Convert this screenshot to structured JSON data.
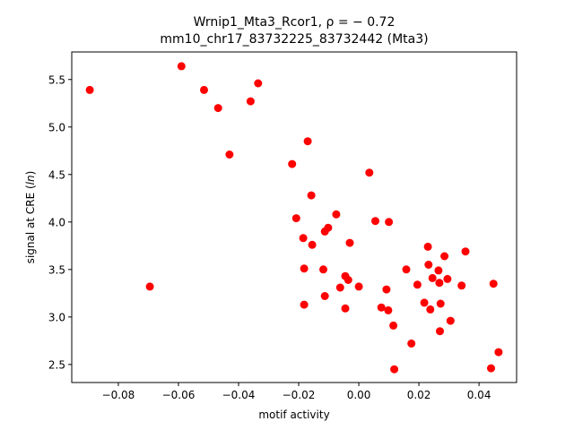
{
  "chart_data": {
    "type": "scatter",
    "title_line1": "Wrnip1_Mta3_Rcor1, ρ = − 0.72",
    "title_line2": "mm10_chr17_83732225_83732442 (Mta3)",
    "xlabel": "motif activity",
    "ylabel": "signal at CRE (ln)",
    "xlim": [
      -0.0955,
      0.0525
    ],
    "ylim": [
      2.31,
      5.79
    ],
    "xticks": [
      -0.08,
      -0.06,
      -0.04,
      -0.02,
      0.0,
      0.02,
      0.04
    ],
    "xtick_labels": [
      "−0.08",
      "−0.06",
      "−0.04",
      "−0.02",
      "0.00",
      "0.02",
      "0.04"
    ],
    "yticks": [
      2.5,
      3.0,
      3.5,
      4.0,
      4.5,
      5.0,
      5.5
    ],
    "ytick_labels": [
      "2.5",
      "3.0",
      "3.5",
      "4.0",
      "4.5",
      "5.0",
      "5.5"
    ],
    "marker_color": "#ff0000",
    "grid": false,
    "points": [
      {
        "x": -0.0895,
        "y": 5.39
      },
      {
        "x": -0.0695,
        "y": 3.32
      },
      {
        "x": -0.059,
        "y": 5.64
      },
      {
        "x": -0.0515,
        "y": 5.39
      },
      {
        "x": -0.0468,
        "y": 5.2
      },
      {
        "x": -0.043,
        "y": 4.71
      },
      {
        "x": -0.036,
        "y": 5.27
      },
      {
        "x": -0.0335,
        "y": 5.46
      },
      {
        "x": -0.0222,
        "y": 4.61
      },
      {
        "x": -0.0208,
        "y": 4.04
      },
      {
        "x": -0.0185,
        "y": 3.83
      },
      {
        "x": -0.0182,
        "y": 3.51
      },
      {
        "x": -0.0182,
        "y": 3.13
      },
      {
        "x": -0.017,
        "y": 4.85
      },
      {
        "x": -0.0158,
        "y": 4.28
      },
      {
        "x": -0.0155,
        "y": 3.76
      },
      {
        "x": -0.0118,
        "y": 3.5
      },
      {
        "x": -0.0113,
        "y": 3.9
      },
      {
        "x": -0.0113,
        "y": 3.22
      },
      {
        "x": -0.0102,
        "y": 3.94
      },
      {
        "x": -0.0075,
        "y": 4.08
      },
      {
        "x": -0.0062,
        "y": 3.31
      },
      {
        "x": -0.0045,
        "y": 3.43
      },
      {
        "x": -0.0045,
        "y": 3.09
      },
      {
        "x": -0.0035,
        "y": 3.39
      },
      {
        "x": -0.003,
        "y": 3.78
      },
      {
        "x": 0.0,
        "y": 3.32
      },
      {
        "x": 0.0035,
        "y": 4.52
      },
      {
        "x": 0.0055,
        "y": 4.01
      },
      {
        "x": 0.0075,
        "y": 3.1
      },
      {
        "x": 0.0092,
        "y": 3.29
      },
      {
        "x": 0.0098,
        "y": 3.07
      },
      {
        "x": 0.01,
        "y": 4.0
      },
      {
        "x": 0.0115,
        "y": 2.91
      },
      {
        "x": 0.0118,
        "y": 2.45
      },
      {
        "x": 0.0158,
        "y": 3.5
      },
      {
        "x": 0.0175,
        "y": 2.72
      },
      {
        "x": 0.0195,
        "y": 3.34
      },
      {
        "x": 0.0218,
        "y": 3.15
      },
      {
        "x": 0.023,
        "y": 3.74
      },
      {
        "x": 0.0232,
        "y": 3.55
      },
      {
        "x": 0.0238,
        "y": 3.08
      },
      {
        "x": 0.0245,
        "y": 3.41
      },
      {
        "x": 0.0265,
        "y": 3.49
      },
      {
        "x": 0.0268,
        "y": 3.36
      },
      {
        "x": 0.027,
        "y": 2.85
      },
      {
        "x": 0.0272,
        "y": 3.14
      },
      {
        "x": 0.0285,
        "y": 3.64
      },
      {
        "x": 0.0295,
        "y": 3.4
      },
      {
        "x": 0.0305,
        "y": 2.96
      },
      {
        "x": 0.0342,
        "y": 3.33
      },
      {
        "x": 0.0355,
        "y": 3.69
      },
      {
        "x": 0.044,
        "y": 2.46
      },
      {
        "x": 0.0448,
        "y": 3.35
      },
      {
        "x": 0.0465,
        "y": 2.63
      }
    ]
  }
}
